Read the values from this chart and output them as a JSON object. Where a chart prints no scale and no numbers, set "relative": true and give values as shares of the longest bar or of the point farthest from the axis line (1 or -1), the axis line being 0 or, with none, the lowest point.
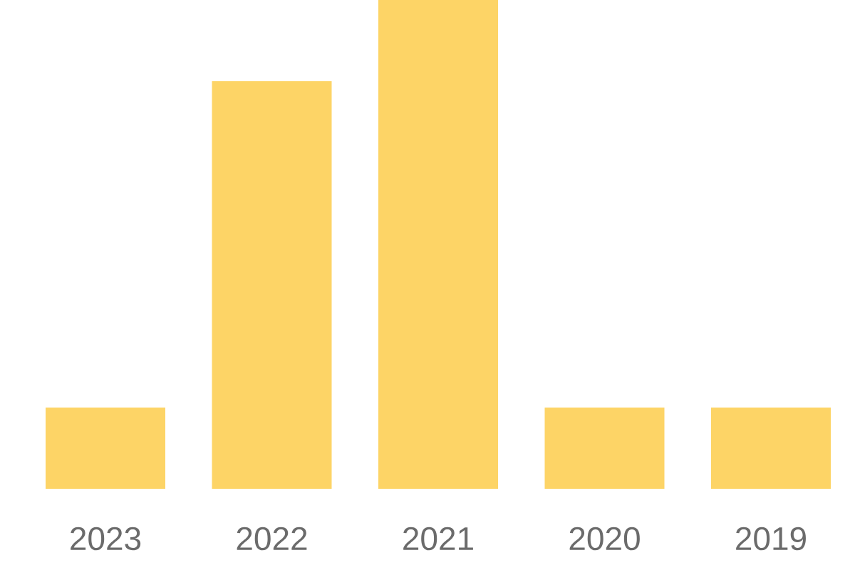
{
  "chart_data": {
    "type": "bar",
    "categories": [
      "2023",
      "2022",
      "2021",
      "2020",
      "2019"
    ],
    "values": [
      0.166,
      0.834,
      1,
      0.166,
      0.166
    ],
    "color": "#fdd466",
    "relative": true
  }
}
